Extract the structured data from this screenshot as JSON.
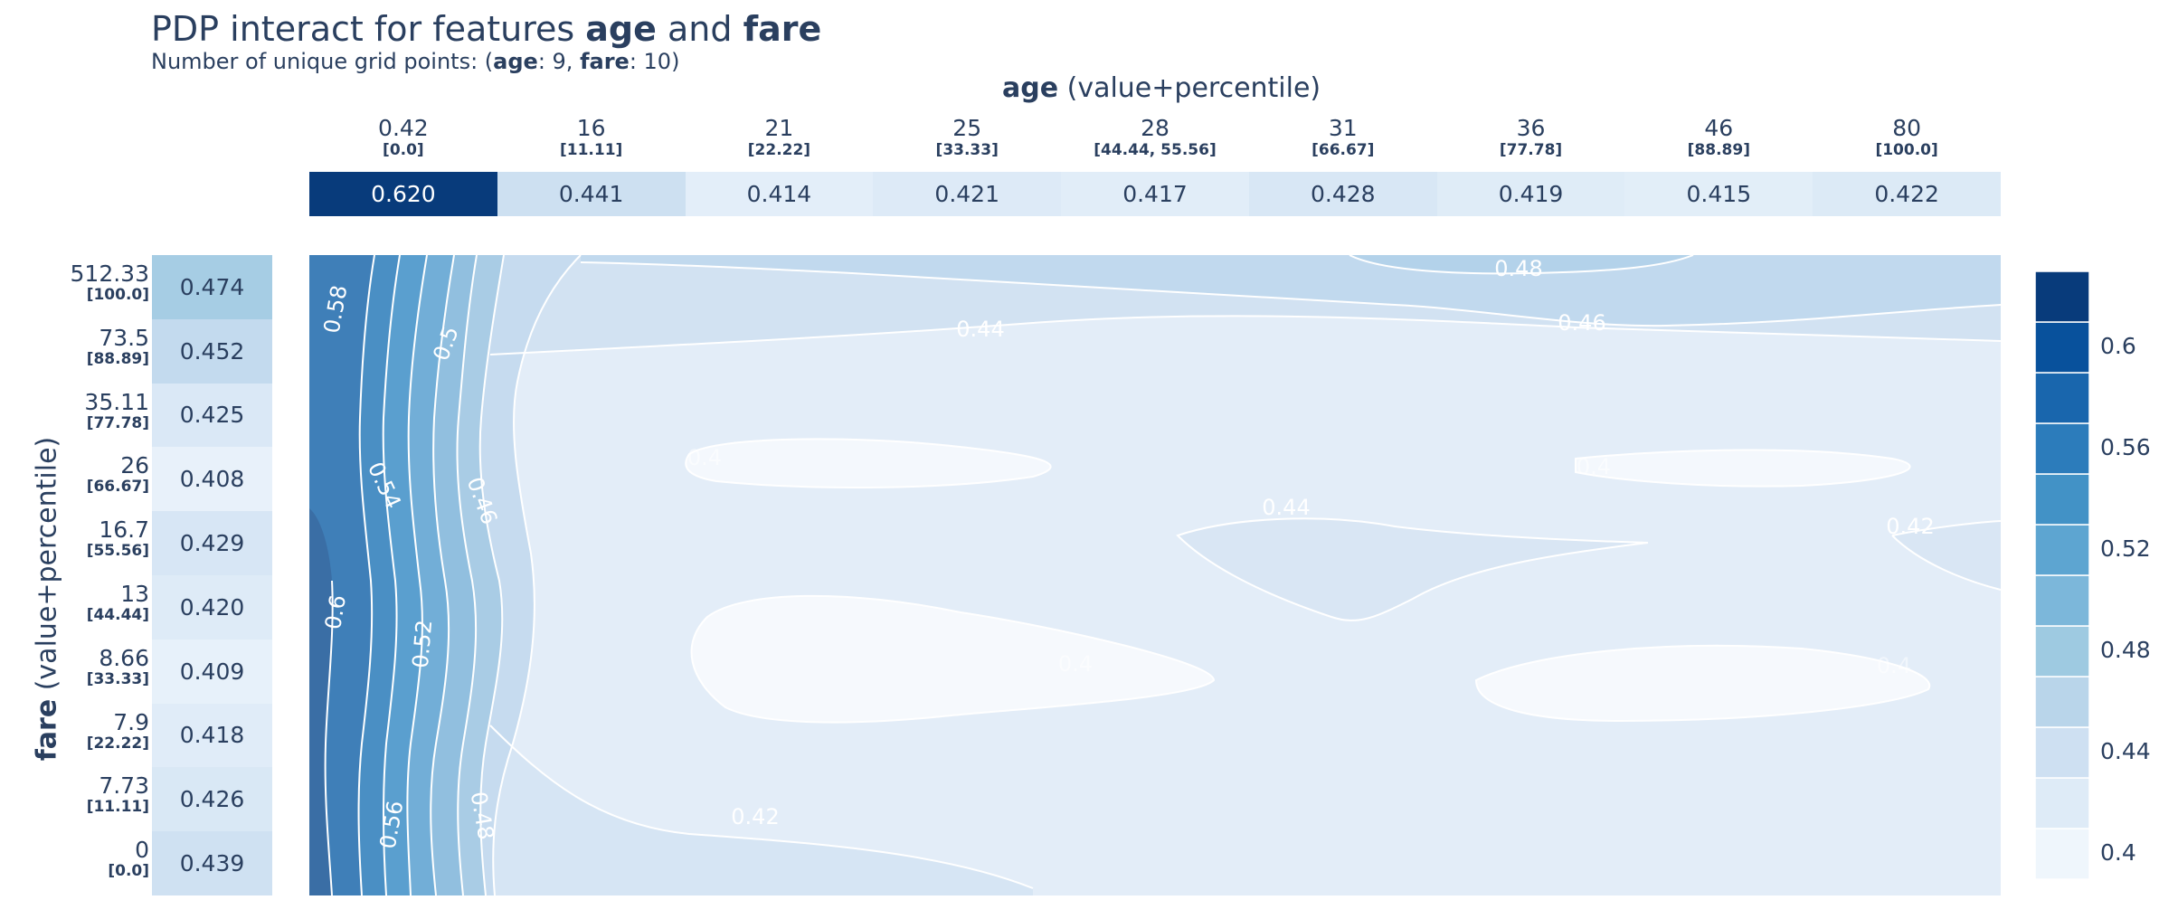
{
  "title": {
    "prefix": "PDP interact for features ",
    "f1": "age",
    "mid": " and ",
    "f2": "fare"
  },
  "subtitle": {
    "prefix": "Number of unique grid points: (",
    "f1": "age",
    "sep1": ": 9, ",
    "f2": "fare",
    "sep2": ": 10)"
  },
  "x_axis": {
    "name": "age",
    "suffix": " (value+percentile)"
  },
  "y_axis": {
    "name": "fare",
    "suffix": " (value+percentile)"
  },
  "chart_data": {
    "type": "heatmap",
    "top_strip": {
      "feature": "age",
      "ticks": [
        {
          "value": "0.42",
          "percentile": "[0.0]"
        },
        {
          "value": "16",
          "percentile": "[11.11]"
        },
        {
          "value": "21",
          "percentile": "[22.22]"
        },
        {
          "value": "25",
          "percentile": "[33.33]"
        },
        {
          "value": "28",
          "percentile": "[44.44, 55.56]"
        },
        {
          "value": "31",
          "percentile": "[66.67]"
        },
        {
          "value": "36",
          "percentile": "[77.78]"
        },
        {
          "value": "46",
          "percentile": "[88.89]"
        },
        {
          "value": "80",
          "percentile": "[100.0]"
        }
      ],
      "values": [
        0.62,
        0.441,
        0.414,
        0.421,
        0.417,
        0.428,
        0.419,
        0.415,
        0.422
      ],
      "labels": [
        "0.620",
        "0.441",
        "0.414",
        "0.421",
        "0.417",
        "0.428",
        "0.419",
        "0.415",
        "0.422"
      ]
    },
    "left_strip": {
      "feature": "fare",
      "ticks": [
        {
          "value": "512.33",
          "percentile": "[100.0]"
        },
        {
          "value": "73.5",
          "percentile": "[88.89]"
        },
        {
          "value": "35.11",
          "percentile": "[77.78]"
        },
        {
          "value": "26",
          "percentile": "[66.67]"
        },
        {
          "value": "16.7",
          "percentile": "[55.56]"
        },
        {
          "value": "13",
          "percentile": "[44.44]"
        },
        {
          "value": "8.66",
          "percentile": "[33.33]"
        },
        {
          "value": "7.9",
          "percentile": "[22.22]"
        },
        {
          "value": "7.73",
          "percentile": "[11.11]"
        },
        {
          "value": "0",
          "percentile": "[0.0]"
        }
      ],
      "values": [
        0.474,
        0.452,
        0.425,
        0.408,
        0.429,
        0.42,
        0.409,
        0.418,
        0.426,
        0.439
      ],
      "labels": [
        "0.474",
        "0.452",
        "0.425",
        "0.408",
        "0.429",
        "0.420",
        "0.409",
        "0.418",
        "0.426",
        "0.439"
      ]
    },
    "contour": {
      "x_count": 9,
      "y_count": 10,
      "level_labels": [
        "0.6",
        "0.58",
        "0.56",
        "0.54",
        "0.52",
        "0.5",
        "0.48",
        "0.46",
        "0.44",
        "0.42",
        "0.4",
        "0.48",
        "0.46",
        "0.44",
        "0.42",
        "0.42",
        "0.4",
        "0.4",
        "0.4",
        "0.4",
        "0.4"
      ]
    },
    "colorbar": {
      "ticks": [
        "0.6",
        "0.56",
        "0.52",
        "0.48",
        "0.44",
        "0.4"
      ],
      "range": [
        0.39,
        0.63
      ],
      "colorscale": [
        "#f7fbff",
        "#deebf7",
        "#c6dbef",
        "#9ecae1",
        "#6baed6",
        "#4292c6",
        "#2171b5",
        "#08519c",
        "#08306b"
      ]
    }
  }
}
